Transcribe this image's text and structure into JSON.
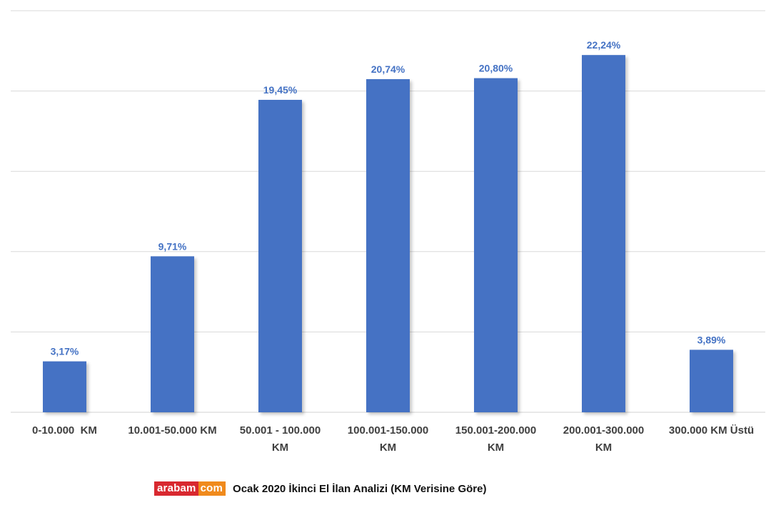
{
  "chart_data": {
    "type": "bar",
    "categories": [
      "0-10.000  KM",
      "10.001-50.000 KM",
      "50.001 - 100.000 KM",
      "100.001-150.000 KM",
      "150.001-200.000 KM",
      "200.001-300.000 KM",
      "300.000 KM Üstü"
    ],
    "category_lines": [
      [
        "0-10.000  KM"
      ],
      [
        "10.001-50.000 KM"
      ],
      [
        "50.001 - 100.000",
        "KM"
      ],
      [
        "100.001-150.000",
        "KM"
      ],
      [
        "150.001-200.000",
        "KM"
      ],
      [
        "200.001-300.000",
        "KM"
      ],
      [
        "300.000 KM Üstü"
      ]
    ],
    "values": [
      3.17,
      9.71,
      19.45,
      20.74,
      20.8,
      22.24,
      3.89
    ],
    "data_labels": [
      "3,17%",
      "9,71%",
      "19,45%",
      "20,74%",
      "20,80%",
      "22,24%",
      "3,89%"
    ],
    "ylim": [
      0,
      25
    ],
    "gridlines": [
      0,
      5,
      10,
      15,
      20,
      25
    ],
    "grid": true,
    "legend": "none",
    "bar_color": "#4472c4",
    "label_color": "#4472c4",
    "axis_label_color": "#404040",
    "grid_color": "#d9d9d9"
  },
  "caption": {
    "logo_part1": "arabam",
    "logo_part2": "com",
    "text": "Ocak 2020 İkinci El İlan Analizi (KM Verisine Göre)"
  }
}
